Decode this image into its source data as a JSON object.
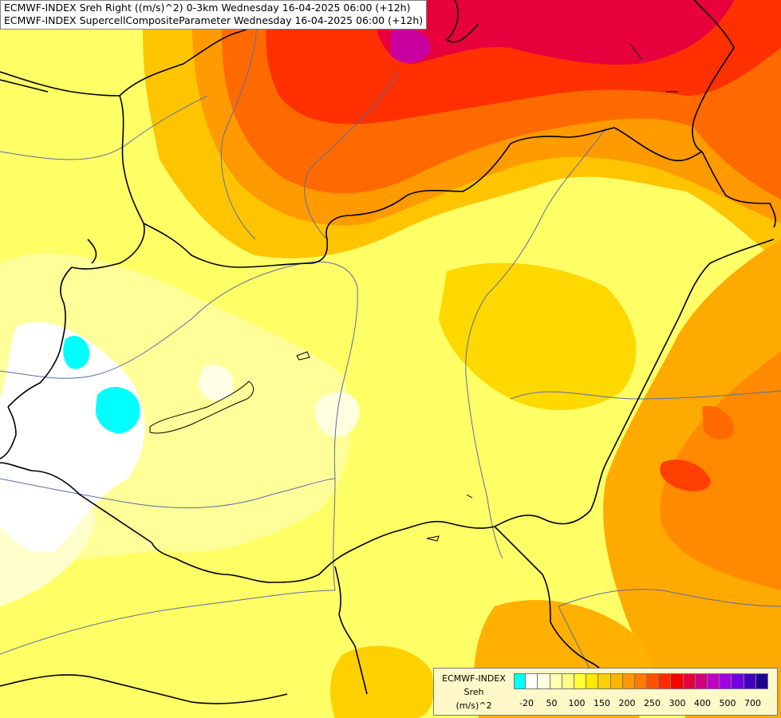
{
  "title": {
    "line1": "ECMWF-INDEX Sreh Right ((m/s)^2) 0-3km Wednesday 16-04-2025 06:00 (+12h)",
    "line2": "ECMWF-INDEX SupercellCompositeParameter Wednesday 16-04-2025 06:00 (+12h)"
  },
  "legend": {
    "source": "ECMWF-INDEX",
    "variable": "Sreh",
    "unit": "(m/s)^2",
    "tick_labels": [
      "-20",
      "50",
      "100",
      "150",
      "200",
      "250",
      "300",
      "400",
      "500",
      "700"
    ],
    "colors": [
      "#00ffff",
      "#ffffff",
      "#ffffe0",
      "#ffffb0",
      "#ffff80",
      "#ffff33",
      "#ffe800",
      "#ffd000",
      "#ffb400",
      "#ff9800",
      "#ff7a00",
      "#ff5200",
      "#ff2a00",
      "#ff0000",
      "#e6003c",
      "#d00080",
      "#c000c0",
      "#a000e0",
      "#7000e0",
      "#4000c0",
      "#1e0090"
    ]
  }
}
